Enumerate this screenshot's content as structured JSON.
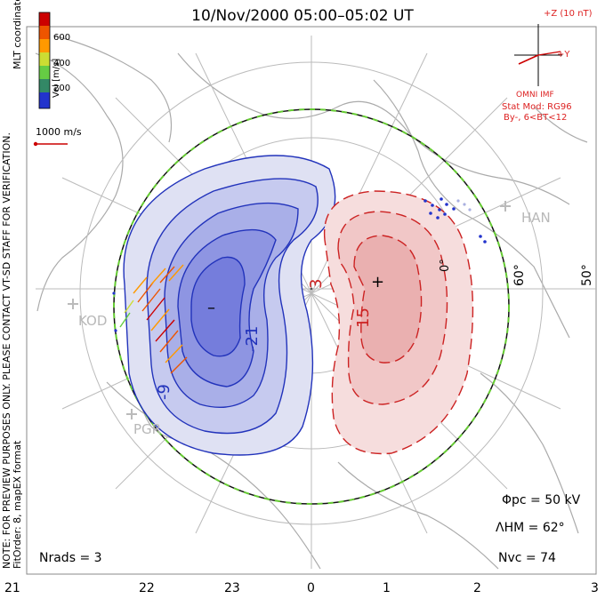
{
  "title": "10/Nov/2000 05:00–05:02 UT",
  "side_notes": {
    "preview": "NOTE: FOR PREVIEW PURPOSES ONLY. PLEASE CONTACT VT-SD STAFF FOR VERIFICATION.",
    "fit_order": "FitOrder: 8, mapEX format",
    "coords": "MLT coordinates"
  },
  "colorbar": {
    "label": "Vel [m/s]",
    "ticks": [
      "600",
      "400",
      "200"
    ],
    "colors": [
      "#cc0000",
      "#ee5500",
      "#ff9900",
      "#ccdd33",
      "#66cc44",
      "#338866",
      "#2233cc"
    ]
  },
  "vector_scale": {
    "label": "1000 m/s",
    "color": "#cc0000"
  },
  "imf": {
    "z_label": "+Z (10 nT)",
    "y_label": "+Y",
    "source": "OMNI IMF",
    "model": "Stat Mod: RG96",
    "condition": "By-, 6<BT<12",
    "color": "#cc0000"
  },
  "stations": [
    "KOD",
    "PGR",
    "HAN"
  ],
  "latitude_labels": [
    "60°",
    "50°"
  ],
  "lon_label": "0°",
  "contour_labels": [
    "-21",
    "-9",
    "3",
    "15"
  ],
  "min_marker": "–",
  "max_marker": "+",
  "stats": {
    "phi_pc": "Φpc = 50 kV",
    "lambda_hm": "ΛHM = 62°",
    "n_vc": "Nvc = 74",
    "n_rads": "Nrads = 3"
  },
  "mlt_ticks": [
    "21",
    "22",
    "23",
    "0",
    "1",
    "2",
    "3"
  ],
  "colors": {
    "negative": "#3344cc",
    "positive": "#cc2222",
    "coast": "#a8a8a8",
    "hmb": "#66cc33"
  }
}
